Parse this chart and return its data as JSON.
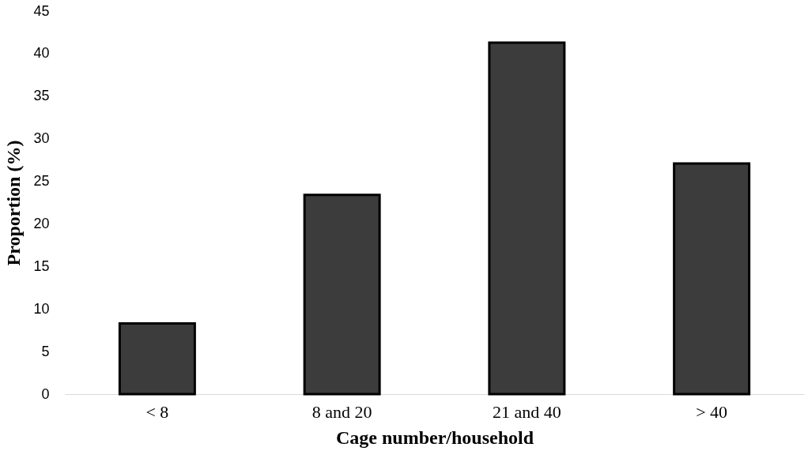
{
  "chart_data": {
    "type": "bar",
    "xlabel": "Cage number/household",
    "ylabel": "Proportion (%)",
    "categories": [
      "< 8",
      "8 and 20",
      "21 and 40",
      "> 40"
    ],
    "values": [
      8.3,
      23.4,
      41.3,
      27.1
    ],
    "color": "#3c3c3c",
    "ylim": [
      0,
      45
    ],
    "yticks": [
      0,
      5,
      10,
      15,
      20,
      25,
      30,
      35,
      40,
      45
    ],
    "grid": false
  }
}
